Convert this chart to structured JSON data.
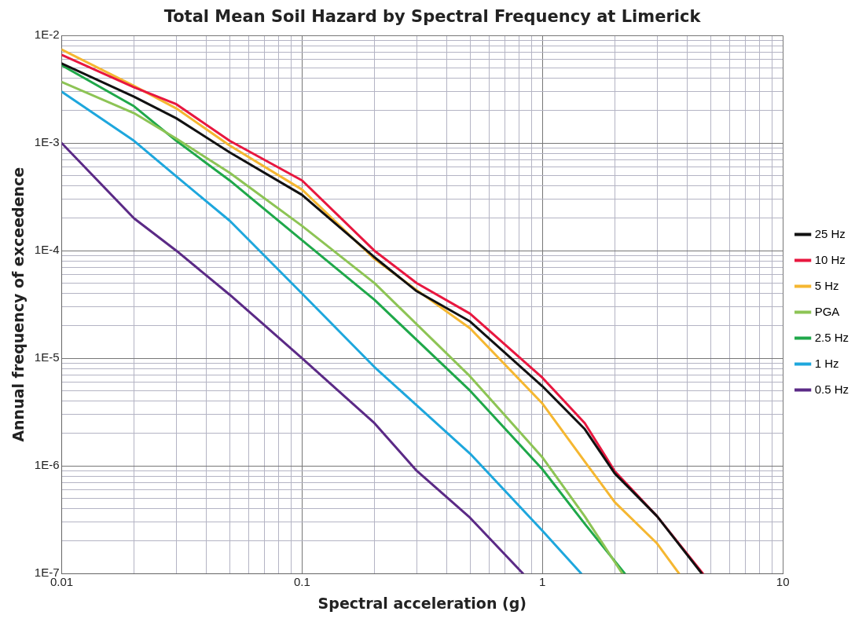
{
  "chart_data": {
    "type": "line",
    "title": "Total Mean Soil Hazard by Spectral Frequency at Limerick",
    "xlabel": "Spectral acceleration (g)",
    "ylabel": "Annual frequency of exceedence",
    "log": "xy",
    "grid": true,
    "legend": "right",
    "marker": "none",
    "line_style": "solid",
    "xlim": [
      0.01,
      10
    ],
    "ylim": [
      1e-07,
      0.01
    ],
    "xticks": [
      0.01,
      {
        "value": 0.02,
        "label": null
      },
      {
        "value": 0.03,
        "label": null
      },
      {
        "value": 0.04,
        "label": null
      },
      {
        "value": 0.05,
        "label": null
      },
      {
        "value": 0.06,
        "label": null
      },
      {
        "value": 0.07,
        "label": null
      },
      {
        "value": 0.08,
        "label": null
      },
      {
        "value": 0.09,
        "label": null
      },
      0.1,
      {
        "value": 0.2,
        "label": null
      },
      {
        "value": 0.3,
        "label": null
      },
      {
        "value": 0.4,
        "label": null
      },
      {
        "value": 0.5,
        "label": null
      },
      {
        "value": 0.6,
        "label": null
      },
      {
        "value": 0.7,
        "label": null
      },
      {
        "value": 0.8,
        "label": null
      },
      {
        "value": 0.9,
        "label": null
      },
      1,
      {
        "value": 2,
        "label": null
      },
      {
        "value": 3,
        "label": null
      },
      {
        "value": 4,
        "label": null
      },
      {
        "value": 5,
        "label": null
      },
      {
        "value": 6,
        "label": null
      },
      {
        "value": 7,
        "label": null
      },
      {
        "value": 8,
        "label": null
      },
      {
        "value": 9,
        "label": null
      },
      10
    ],
    "yticks": [
      {
        "value": 1e-07,
        "label": "1E-7"
      },
      {
        "value": 2e-07,
        "label": null
      },
      {
        "value": 3e-07,
        "label": null
      },
      {
        "value": 4e-07,
        "label": null
      },
      {
        "value": 5e-07,
        "label": null
      },
      {
        "value": 6e-07,
        "label": null
      },
      {
        "value": 7e-07,
        "label": null
      },
      {
        "value": 8e-07,
        "label": null
      },
      {
        "value": 9e-07,
        "label": null
      },
      {
        "value": 1e-06,
        "label": "1E-6"
      },
      {
        "value": 2e-06,
        "label": null
      },
      {
        "value": 3e-06,
        "label": null
      },
      {
        "value": 4e-06,
        "label": null
      },
      {
        "value": 5e-06,
        "label": null
      },
      {
        "value": 6e-06,
        "label": null
      },
      {
        "value": 7e-06,
        "label": null
      },
      {
        "value": 8e-06,
        "label": null
      },
      {
        "value": 9e-06,
        "label": null
      },
      {
        "value": 1e-05,
        "label": "1E-5"
      },
      {
        "value": 2e-05,
        "label": null
      },
      {
        "value": 3e-05,
        "label": null
      },
      {
        "value": 4e-05,
        "label": null
      },
      {
        "value": 5e-05,
        "label": null
      },
      {
        "value": 6e-05,
        "label": null
      },
      {
        "value": 7e-05,
        "label": null
      },
      {
        "value": 8e-05,
        "label": null
      },
      {
        "value": 9e-05,
        "label": null
      },
      {
        "value": 0.0001,
        "label": "1E-4"
      },
      {
        "value": 0.0002,
        "label": null
      },
      {
        "value": 0.0003,
        "label": null
      },
      {
        "value": 0.0004,
        "label": null
      },
      {
        "value": 0.0005,
        "label": null
      },
      {
        "value": 0.0006,
        "label": null
      },
      {
        "value": 0.0007,
        "label": null
      },
      {
        "value": 0.0008,
        "label": null
      },
      {
        "value": 0.0009,
        "label": null
      },
      {
        "value": 0.001,
        "label": "1E-3"
      },
      {
        "value": 0.002,
        "label": null
      },
      {
        "value": 0.003,
        "label": null
      },
      {
        "value": 0.004,
        "label": null
      },
      {
        "value": 0.005,
        "label": null
      },
      {
        "value": 0.006,
        "label": null
      },
      {
        "value": 0.007,
        "label": null
      },
      {
        "value": 0.008,
        "label": null
      },
      {
        "value": 0.009,
        "label": null
      },
      {
        "value": 0.01,
        "label": "1E-2"
      }
    ],
    "series": [
      {
        "name": "25 Hz",
        "color": "#111111",
        "x": [
          0.01,
          0.02,
          0.03,
          0.05,
          0.1,
          0.2,
          0.3,
          0.5,
          1,
          1.5,
          2,
          3,
          4.6
        ],
        "values": [
          0.0055,
          0.0027,
          0.0017,
          0.00082,
          0.00033,
          8.7e-05,
          4.2e-05,
          2.2e-05,
          5.5e-06,
          2.2e-06,
          8.5e-07,
          3.4e-07,
          1e-07
        ]
      },
      {
        "name": "10 Hz",
        "color": "#e8173f",
        "x": [
          0.01,
          0.02,
          0.03,
          0.05,
          0.1,
          0.2,
          0.3,
          0.5,
          1,
          1.5,
          2,
          3,
          4.65
        ],
        "values": [
          0.0066,
          0.0033,
          0.0023,
          0.00105,
          0.00045,
          0.0001,
          5e-05,
          2.6e-05,
          6.6e-06,
          2.5e-06,
          8.9e-07,
          3.4e-07,
          1e-07
        ]
      },
      {
        "name": "5 Hz",
        "color": "#f5b731",
        "x": [
          0.01,
          0.02,
          0.03,
          0.05,
          0.1,
          0.2,
          0.3,
          0.5,
          1,
          1.5,
          2,
          3,
          3.7
        ],
        "values": [
          0.0074,
          0.0034,
          0.0021,
          0.00095,
          0.00037,
          8.4e-05,
          4.3e-05,
          1.9e-05,
          3.8e-06,
          1.1e-06,
          4.6e-07,
          1.9e-07,
          1e-07
        ]
      },
      {
        "name": "PGA",
        "color": "#8dc455",
        "x": [
          0.01,
          0.02,
          0.03,
          0.05,
          0.1,
          0.2,
          0.5,
          1,
          1.5,
          2.15
        ],
        "values": [
          0.0037,
          0.0019,
          0.0011,
          0.00053,
          0.00017,
          5e-05,
          6.8e-06,
          1.2e-06,
          3.4e-07,
          1e-07
        ]
      },
      {
        "name": "2.5 Hz",
        "color": "#1fa84a",
        "x": [
          0.01,
          0.02,
          0.03,
          0.05,
          0.1,
          0.2,
          0.5,
          1,
          1.5,
          2.2
        ],
        "values": [
          0.0053,
          0.0022,
          0.00105,
          0.00045,
          0.000125,
          3.5e-05,
          5e-06,
          9.3e-07,
          2.9e-07,
          1e-07
        ]
      },
      {
        "name": "1 Hz",
        "color": "#1ea7dd",
        "x": [
          0.01,
          0.02,
          0.03,
          0.05,
          0.1,
          0.2,
          0.5,
          1,
          1.45
        ],
        "values": [
          0.003,
          0.00105,
          0.00049,
          0.00019,
          4e-05,
          8.3e-06,
          1.3e-06,
          2.5e-07,
          1e-07
        ]
      },
      {
        "name": "0.5 Hz",
        "color": "#5b2a86",
        "x": [
          0.01,
          0.02,
          0.03,
          0.05,
          0.1,
          0.2,
          0.3,
          0.5,
          0.83
        ],
        "values": [
          0.001,
          0.0002,
          0.0001,
          3.9e-05,
          1e-05,
          2.5e-06,
          9e-07,
          3.3e-07,
          1e-07
        ]
      }
    ]
  }
}
